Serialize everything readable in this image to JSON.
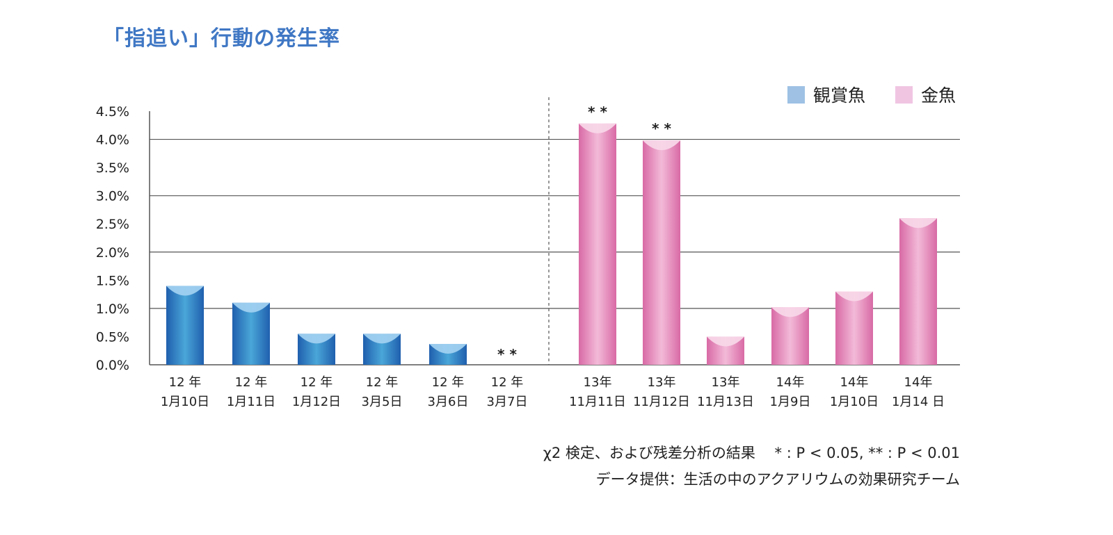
{
  "chart_data": {
    "type": "bar",
    "title": "「指追い」行動の発生率",
    "ylim": [
      0,
      4.5
    ],
    "yticks": [
      "0.0%",
      "0.5%",
      "1.0%",
      "1.5%",
      "2.0%",
      "2.5%",
      "3.0%",
      "3.5%",
      "4.0%",
      "4.5%"
    ],
    "grid": "horizontal at 1.0%, 2.0%, 3.0%, 4.0%",
    "legend_position": "top-right",
    "series": [
      {
        "name": "観賞魚",
        "color": "#3a86c8",
        "categories": [
          [
            "12 年",
            "1月10日"
          ],
          [
            "12 年",
            "1月11日"
          ],
          [
            "12 年",
            "1月12日"
          ],
          [
            "12 年",
            "3月5日"
          ],
          [
            "12 年",
            "3月6日"
          ],
          [
            "12 年",
            "3月7日"
          ]
        ],
        "values": [
          1.4,
          1.1,
          0.55,
          0.55,
          0.37,
          0
        ],
        "significance": [
          "",
          "",
          "",
          "",
          "",
          "**"
        ]
      },
      {
        "name": "金魚",
        "color": "#e48bbd",
        "categories": [
          [
            "13年",
            "11月11日"
          ],
          [
            "13年",
            "11月12日"
          ],
          [
            "13年",
            "11月13日"
          ],
          [
            "14年",
            "1月9日"
          ],
          [
            "14年",
            "1月10日"
          ],
          [
            "14年",
            "1月14 日"
          ]
        ],
        "values": [
          4.28,
          3.98,
          0.5,
          1.02,
          1.3,
          2.6
        ],
        "significance": [
          "**",
          "**",
          "",
          "",
          "",
          ""
        ]
      }
    ]
  },
  "legend_colors": {
    "ornamental": "#9ec1e4",
    "goldfish": "#f0c5e2"
  },
  "notes": {
    "stat": "χ2 検定、および残差分析の結果　 * : P < 0.05, ** : P < 0.01",
    "credit": "データ提供：生活の中のアクアリウムの効果研究チーム"
  }
}
